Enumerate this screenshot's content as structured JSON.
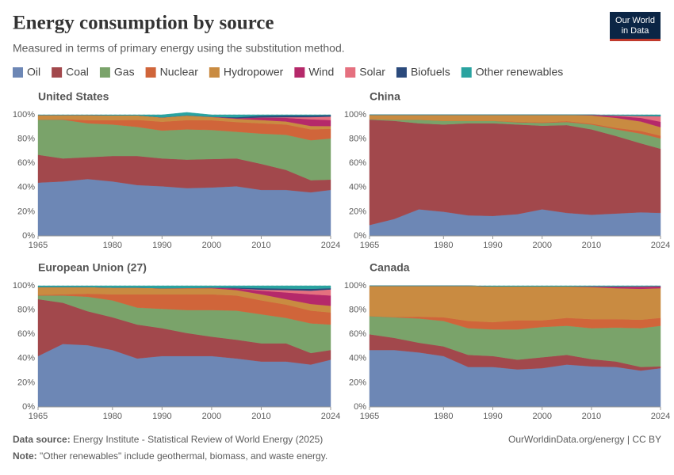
{
  "header": {
    "title": "Energy consumption by source",
    "subtitle": "Measured in terms of primary energy using the substitution method.",
    "logo": [
      "Our World",
      "in Data"
    ]
  },
  "legend": [
    {
      "name": "Oil",
      "color": "#6d87b5"
    },
    {
      "name": "Coal",
      "color": "#a2484c"
    },
    {
      "name": "Gas",
      "color": "#7aa36a"
    },
    {
      "name": "Nuclear",
      "color": "#d0653a"
    },
    {
      "name": "Hydropower",
      "color": "#c98b41"
    },
    {
      "name": "Wind",
      "color": "#b5296a"
    },
    {
      "name": "Solar",
      "color": "#e5707f"
    },
    {
      "name": "Biofuels",
      "color": "#2b4a7c"
    },
    {
      "name": "Other renewables",
      "color": "#2aa3a0"
    }
  ],
  "chart_data": [
    {
      "type": "area",
      "title": "United States",
      "x": [
        1965,
        1970,
        1975,
        1980,
        1985,
        1990,
        1995,
        2000,
        2005,
        2010,
        2015,
        2020,
        2024
      ],
      "xlim": [
        1965,
        2024
      ],
      "xticks": [
        1965,
        1980,
        1990,
        2000,
        2010,
        2024
      ],
      "ylim": [
        0,
        100
      ],
      "yticks": [
        {
          "value": 0,
          "label": "0%"
        },
        {
          "value": 20,
          "label": "20%"
        },
        {
          "value": 40,
          "label": "40%"
        },
        {
          "value": 60,
          "label": "60%"
        },
        {
          "value": 80,
          "label": "80%"
        },
        {
          "value": 100,
          "label": "100%"
        }
      ],
      "grid": true,
      "series": [
        {
          "values": [
            44,
            45,
            47,
            45,
            42,
            41,
            39.5,
            40,
            41,
            38,
            38,
            36,
            38
          ]
        },
        {
          "values": [
            23,
            19,
            18,
            21,
            24,
            23,
            23.5,
            23.5,
            23,
            21.5,
            16.5,
            10,
            8.5
          ]
        },
        {
          "values": [
            29,
            32,
            28,
            26,
            24,
            23,
            25,
            24,
            22,
            25,
            29,
            33,
            34
          ]
        },
        {
          "values": [
            0.1,
            0.4,
            2.6,
            3.6,
            5.8,
            7.3,
            7.6,
            8,
            8,
            8.5,
            8.5,
            9,
            8
          ]
        },
        {
          "values": [
            3.7,
            3.4,
            4.2,
            4,
            3.8,
            3.5,
            3.8,
            2.7,
            2.7,
            2.7,
            2.5,
            2.8,
            2.2
          ]
        },
        {
          "values": [
            0,
            0,
            0,
            0,
            0,
            0.1,
            0.1,
            0.2,
            0.5,
            2,
            3,
            5.5,
            5
          ]
        },
        {
          "values": [
            0,
            0,
            0,
            0,
            0,
            0,
            0,
            0,
            0,
            0.1,
            0.5,
            1.8,
            2.8
          ]
        },
        {
          "values": [
            0,
            0,
            0,
            0,
            0,
            0,
            0,
            0,
            0.8,
            1.5,
            1.5,
            1.4,
            1.3
          ]
        },
        {
          "values": [
            0.2,
            0.2,
            0.2,
            0.4,
            0.4,
            2.1,
            2.5,
            1.6,
            2,
            0.7,
            0.5,
            0.5,
            0.2
          ]
        }
      ]
    },
    {
      "type": "area",
      "title": "China",
      "x": [
        1965,
        1970,
        1975,
        1980,
        1985,
        1990,
        1995,
        2000,
        2005,
        2010,
        2015,
        2020,
        2024
      ],
      "xlim": [
        1965,
        2024
      ],
      "xticks": [
        1965,
        1980,
        1990,
        2000,
        2010,
        2024
      ],
      "ylim": [
        0,
        100
      ],
      "yticks": [
        {
          "value": 0,
          "label": "0%"
        },
        {
          "value": 20,
          "label": "20%"
        },
        {
          "value": 40,
          "label": "40%"
        },
        {
          "value": 60,
          "label": "60%"
        },
        {
          "value": 80,
          "label": "80%"
        },
        {
          "value": 100,
          "label": "100%"
        }
      ],
      "grid": true,
      "series": [
        {
          "values": [
            9,
            14,
            22,
            20,
            17,
            16.5,
            18,
            22,
            19,
            17.5,
            18.5,
            19.5,
            19
          ]
        },
        {
          "values": [
            87,
            81,
            71,
            72,
            76,
            76.5,
            74,
            69,
            72.5,
            70.5,
            64,
            57,
            53
          ]
        },
        {
          "values": [
            0.5,
            1,
            3,
            3,
            2,
            2,
            1.8,
            2.3,
            2.5,
            4,
            5.5,
            8,
            8.5
          ]
        },
        {
          "values": [
            0,
            0,
            0,
            0,
            0,
            0,
            0.5,
            0.5,
            0.8,
            0.7,
            1.2,
            2.2,
            2.3
          ]
        },
        {
          "values": [
            3.5,
            4,
            4,
            5,
            5,
            5,
            5.7,
            6.2,
            5.2,
            6.8,
            8.3,
            7.8,
            7
          ]
        },
        {
          "values": [
            0,
            0,
            0,
            0,
            0,
            0,
            0,
            0,
            0,
            0.5,
            1.5,
            3,
            4.5
          ]
        },
        {
          "values": [
            0,
            0,
            0,
            0,
            0,
            0,
            0,
            0,
            0,
            0,
            0.5,
            1.5,
            4.5
          ]
        },
        {
          "values": [
            0,
            0,
            0,
            0,
            0,
            0,
            0,
            0,
            0,
            0,
            0,
            0.2,
            0.2
          ]
        },
        {
          "values": [
            0,
            0,
            0,
            0,
            0,
            0,
            0,
            0,
            0,
            0,
            0.5,
            0.8,
            1
          ]
        }
      ]
    },
    {
      "type": "area",
      "title": "European Union (27)",
      "x": [
        1965,
        1970,
        1975,
        1980,
        1985,
        1990,
        1995,
        2000,
        2005,
        2010,
        2015,
        2020,
        2024
      ],
      "xlim": [
        1965,
        2024
      ],
      "xticks": [
        1965,
        1980,
        1990,
        2000,
        2010,
        2024
      ],
      "ylim": [
        0,
        100
      ],
      "yticks": [
        {
          "value": 0,
          "label": "0%"
        },
        {
          "value": 20,
          "label": "20%"
        },
        {
          "value": 40,
          "label": "40%"
        },
        {
          "value": 60,
          "label": "60%"
        },
        {
          "value": 80,
          "label": "80%"
        },
        {
          "value": 100,
          "label": "100%"
        }
      ],
      "grid": true,
      "series": [
        {
          "values": [
            42,
            52,
            51,
            47,
            40,
            42,
            42,
            42,
            40,
            37.5,
            37.5,
            35,
            39
          ]
        },
        {
          "values": [
            47,
            34,
            28,
            27,
            28,
            23,
            19,
            16,
            15.5,
            15,
            15,
            9.5,
            8
          ]
        },
        {
          "values": [
            3,
            6,
            12,
            14,
            14,
            16,
            19,
            22,
            24,
            24,
            21,
            24.5,
            21
          ]
        },
        {
          "values": [
            0.5,
            1,
            2.5,
            5,
            11,
            12,
            13,
            13,
            12.5,
            11.5,
            11,
            10.5,
            10
          ]
        },
        {
          "values": [
            6.5,
            6,
            5.5,
            5.5,
            5.5,
            5,
            5,
            5,
            4.5,
            5,
            4.5,
            5.5,
            5.5
          ]
        },
        {
          "values": [
            0,
            0,
            0,
            0,
            0,
            0,
            0.2,
            0.5,
            1.3,
            3,
            5.5,
            8,
            8.5
          ]
        },
        {
          "values": [
            0,
            0,
            0,
            0,
            0,
            0,
            0,
            0,
            0,
            0.8,
            2,
            3,
            5
          ]
        },
        {
          "values": [
            0,
            0,
            0,
            0,
            0,
            0,
            0,
            0,
            0.7,
            1.2,
            1.2,
            1.5,
            1
          ]
        },
        {
          "values": [
            1,
            1,
            1,
            1.5,
            1.5,
            2,
            1.8,
            1.5,
            1.5,
            2,
            2.3,
            2.5,
            2
          ]
        }
      ]
    },
    {
      "type": "area",
      "title": "Canada",
      "x": [
        1965,
        1970,
        1975,
        1980,
        1985,
        1990,
        1995,
        2000,
        2005,
        2010,
        2015,
        2020,
        2024
      ],
      "xlim": [
        1965,
        2024
      ],
      "xticks": [
        1965,
        1980,
        1990,
        2000,
        2010,
        2024
      ],
      "ylim": [
        0,
        100
      ],
      "yticks": [
        {
          "value": 0,
          "label": "0%"
        },
        {
          "value": 20,
          "label": "20%"
        },
        {
          "value": 40,
          "label": "40%"
        },
        {
          "value": 60,
          "label": "60%"
        },
        {
          "value": 80,
          "label": "80%"
        },
        {
          "value": 100,
          "label": "100%"
        }
      ],
      "grid": true,
      "series": [
        {
          "values": [
            47,
            47,
            45,
            42,
            33,
            33,
            31,
            32,
            35,
            33.5,
            33,
            30,
            32
          ]
        },
        {
          "values": [
            13,
            10,
            8,
            8,
            10,
            9,
            8,
            9,
            8,
            6,
            4.5,
            3,
            1.5
          ]
        },
        {
          "values": [
            15,
            17,
            20,
            21,
            22,
            22,
            25,
            25,
            24,
            25.5,
            28,
            32,
            33.5
          ]
        },
        {
          "values": [
            0,
            0.3,
            1.5,
            3,
            6,
            6,
            7.5,
            5.5,
            6.5,
            7.5,
            7,
            7,
            6.5
          ]
        },
        {
          "values": [
            25,
            25.7,
            25.5,
            26,
            29,
            29.5,
            28,
            28,
            26,
            26.5,
            25.5,
            25.5,
            24.5
          ]
        },
        {
          "values": [
            0,
            0,
            0,
            0,
            0,
            0,
            0,
            0,
            0,
            0.5,
            1.2,
            1.7,
            1.4
          ]
        },
        {
          "values": [
            0,
            0,
            0,
            0,
            0,
            0,
            0,
            0,
            0,
            0,
            0.1,
            0.2,
            0.2
          ]
        },
        {
          "values": [
            0,
            0,
            0,
            0,
            0,
            0,
            0,
            0,
            0,
            0,
            0.2,
            0.2,
            0.2
          ]
        },
        {
          "values": [
            0,
            0,
            0,
            0,
            0,
            0.5,
            0.5,
            0.5,
            0.5,
            0.5,
            0.5,
            0.4,
            0.2
          ]
        }
      ]
    }
  ],
  "footer": {
    "source_label": "Data source:",
    "source": "Energy Institute - Statistical Review of World Energy (2025)",
    "url": "OurWorldinData.org/energy | CC BY",
    "note_label": "Note:",
    "note": "\"Other renewables\" include geothermal, biomass, and waste energy."
  }
}
